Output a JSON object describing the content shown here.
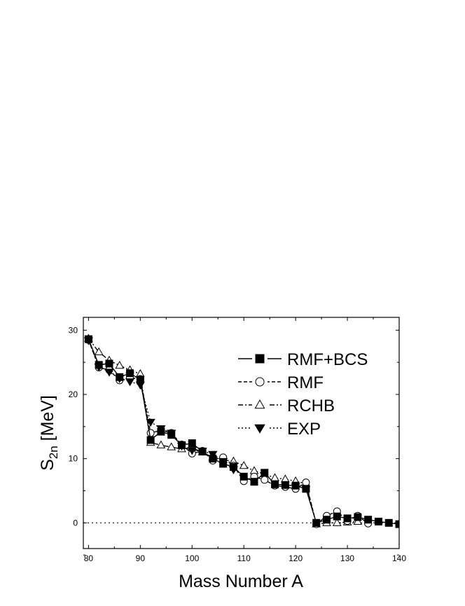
{
  "chart_data": {
    "type": "line",
    "title": "",
    "xlabel": "Mass Number A",
    "ylabel_main": "S",
    "ylabel_sub": "2n",
    "ylabel_unit": " [MeV]",
    "xlim": [
      79,
      140
    ],
    "ylim": [
      -4,
      32
    ],
    "xticks": [
      80,
      90,
      100,
      110,
      120,
      130,
      140
    ],
    "yticks": [
      0,
      10,
      20,
      30
    ],
    "legend_position": "top-right",
    "reference_line": {
      "y": 0,
      "style": "dotted"
    },
    "series": [
      {
        "name": "RMF+BCS",
        "marker": "filled-square",
        "line": "solid",
        "x": [
          80,
          82,
          84,
          86,
          88,
          90,
          92,
          94,
          96,
          98,
          100,
          102,
          104,
          106,
          108,
          110,
          112,
          114,
          116,
          118,
          120,
          122,
          124,
          126,
          128,
          130,
          132,
          134,
          136,
          138,
          140
        ],
        "y": [
          28.6,
          24.6,
          24.8,
          22.7,
          23.3,
          22.3,
          12.9,
          14.2,
          13.7,
          12.1,
          12.4,
          11.1,
          10.0,
          9.2,
          8.7,
          7.2,
          6.4,
          7.8,
          6.0,
          5.9,
          5.8,
          5.3,
          0.0,
          0.5,
          1.0,
          0.7,
          0.9,
          0.5,
          0.2,
          0.0,
          -0.2
        ]
      },
      {
        "name": "RMF",
        "marker": "open-circle",
        "line": "dashed",
        "x": [
          80,
          82,
          84,
          86,
          88,
          90,
          92,
          94,
          96,
          98,
          100,
          102,
          104,
          106,
          108,
          110,
          112,
          114,
          116,
          118,
          120,
          122,
          124,
          126,
          128,
          130,
          132,
          134
        ],
        "y": [
          28.5,
          24.2,
          23.8,
          22.2,
          22.6,
          22.4,
          14.0,
          14.4,
          14.0,
          12.2,
          10.8,
          11.2,
          9.7,
          10.2,
          8.9,
          6.5,
          7.2,
          6.7,
          5.8,
          5.6,
          5.3,
          6.3,
          -0.2,
          1.1,
          1.8,
          0.3,
          1.1,
          -0.1
        ]
      },
      {
        "name": "RCHB",
        "marker": "open-triangle",
        "line": "dash-dot",
        "x": [
          80,
          82,
          84,
          86,
          88,
          90,
          92,
          94,
          96,
          98,
          100,
          102,
          104,
          106,
          108,
          110,
          112,
          114,
          116,
          118,
          120,
          122,
          124,
          126,
          128,
          130,
          132
        ],
        "y": [
          28.7,
          26.6,
          25.3,
          24.5,
          23.8,
          23.2,
          12.5,
          12.1,
          11.8,
          11.5,
          11.7,
          11.0,
          10.2,
          9.8,
          9.6,
          8.9,
          8.1,
          7.6,
          7.0,
          6.8,
          6.5,
          6.1,
          -0.2,
          0.0,
          0.0,
          0.1,
          0.2
        ]
      },
      {
        "name": "EXP",
        "marker": "filled-down-triangle",
        "line": "dotted",
        "x": [
          80,
          82,
          84,
          86,
          88,
          90,
          92,
          94,
          96,
          98,
          100,
          102,
          104,
          106,
          108
        ],
        "y": [
          28.4,
          24.3,
          23.5,
          22.5,
          22.0,
          21.5,
          15.7,
          14.7,
          14.0,
          12.0,
          11.3,
          11.2,
          10.7,
          9.6,
          8.3
        ]
      }
    ]
  }
}
